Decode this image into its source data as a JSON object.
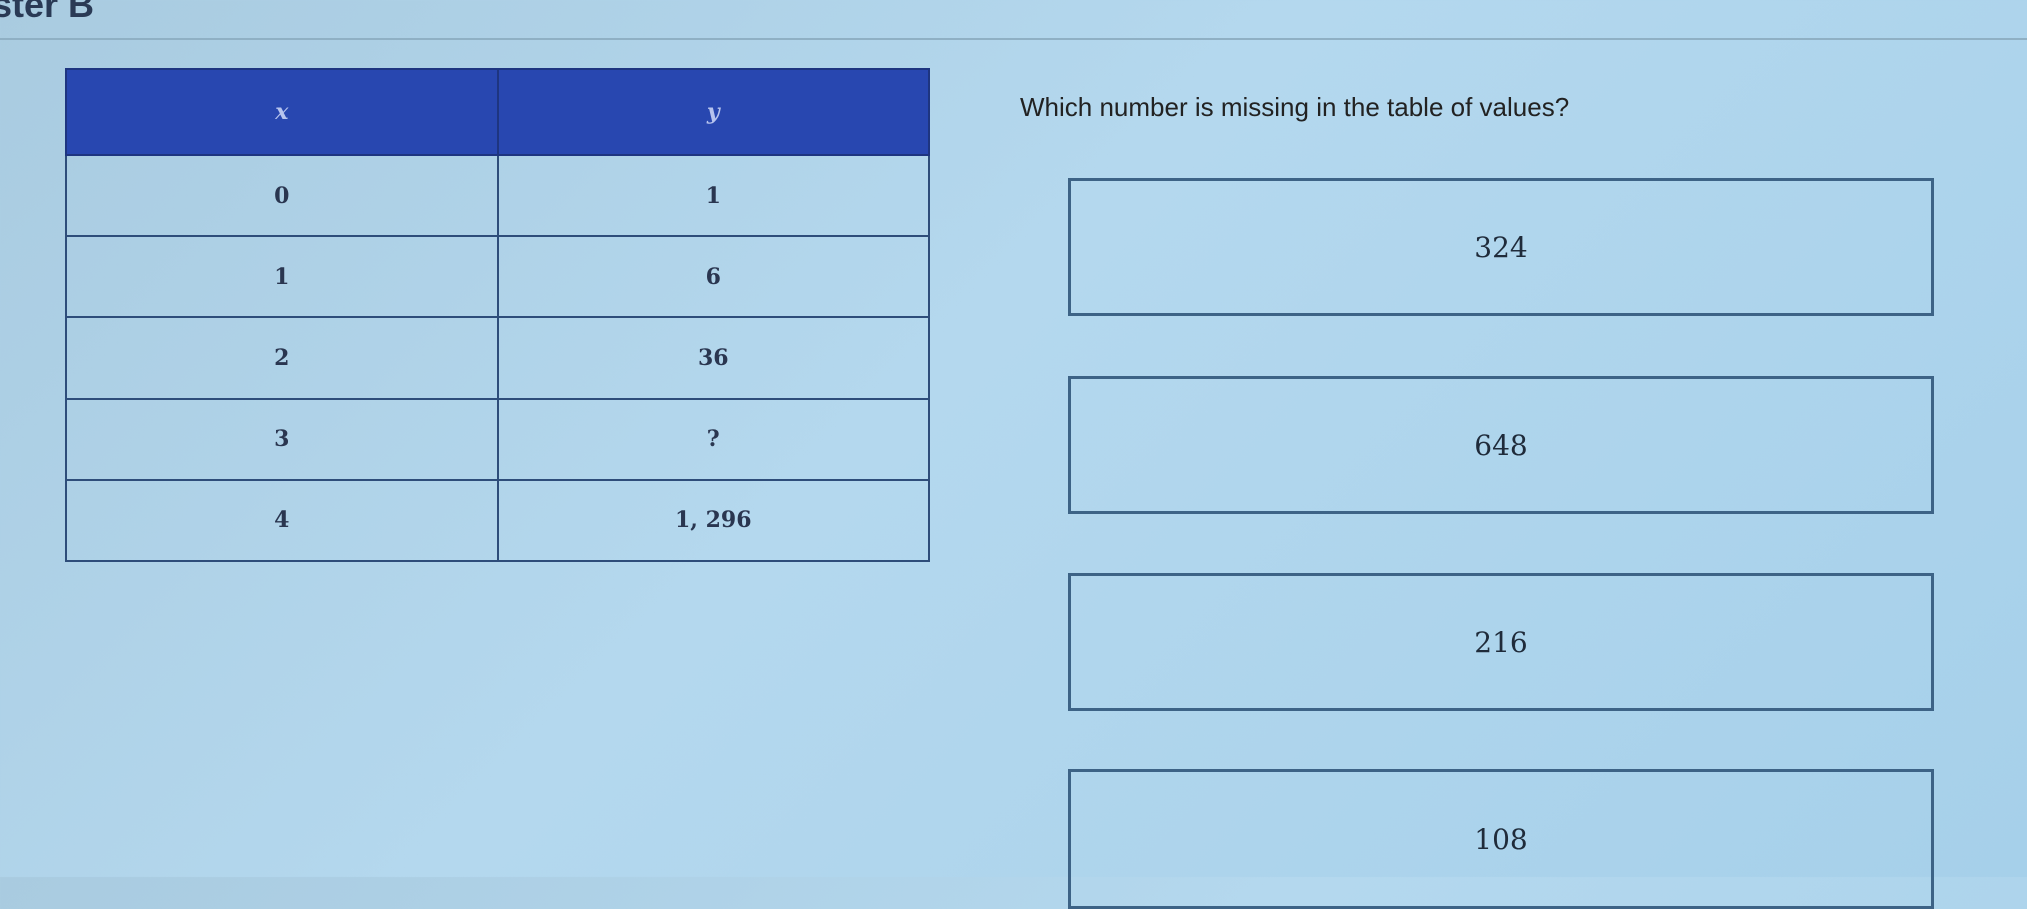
{
  "header": {
    "title": "ster B"
  },
  "table": {
    "headers": [
      "x",
      "y"
    ],
    "rows": [
      [
        "0",
        "1"
      ],
      [
        "1",
        "6"
      ],
      [
        "2",
        "36"
      ],
      [
        "3",
        "?"
      ],
      [
        "4",
        "1, 296"
      ]
    ]
  },
  "question": "Which number is missing in the table of values?",
  "options": [
    "324",
    "648",
    "216",
    "108"
  ],
  "colors": {
    "table_header": "#2847b0",
    "background": "#b4d8ee"
  }
}
